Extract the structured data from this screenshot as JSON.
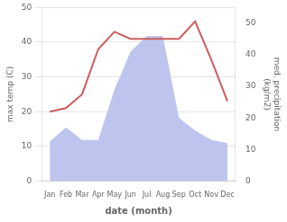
{
  "chart_data": {
    "type": "line",
    "xlabel": "date (month)",
    "ylabel": "max temp (C)",
    "y2label": "med. precipitation\n(kg/m2)",
    "categories": [
      "Jan",
      "Feb",
      "Mar",
      "Apr",
      "May",
      "Jun",
      "Jul",
      "Aug",
      "Sep",
      "Oct",
      "Nov",
      "Dec"
    ],
    "series": [
      {
        "type": "area",
        "axis": "y2",
        "color": "#bdc5ee",
        "values": [
          12.5,
          17.0,
          13.0,
          13.0,
          29.0,
          41.0,
          46.0,
          46.0,
          20.0,
          16.0,
          13.0,
          12.0
        ]
      },
      {
        "type": "line",
        "color": "#cd5c5c",
        "values": [
          20.0,
          21.0,
          25.0,
          38.0,
          43.0,
          41.0,
          41.0,
          41.0,
          41.0,
          46.0,
          35.0,
          23.0
        ]
      }
    ],
    "ylim": [
      0,
      50
    ],
    "yticks": [
      0,
      10,
      20,
      30,
      40,
      50
    ],
    "y2lim": [
      0,
      55
    ],
    "y2ticks": [
      0,
      10,
      20,
      30,
      40,
      50
    ],
    "grid": true
  }
}
